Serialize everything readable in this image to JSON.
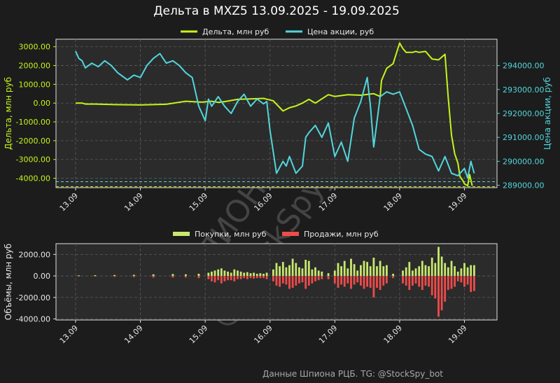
{
  "title": "Дельта в MXZ5 13.09.2025 - 19.09.2025",
  "footer": "Данные Шпиона РЦБ. TG: @StockSpy_bot",
  "watermark": [
    "ШПИОН РЦБ",
    "@StockSpy_bot"
  ],
  "colors": {
    "background": "#1c1c1c",
    "plot_bg": "#2b2b2b",
    "delta": "#c5f41a",
    "price": "#52d6dc",
    "buy": "#c8e86e",
    "sell": "#ef4b4b",
    "text": "#e8e8e8",
    "grid": "#5a5a5a"
  },
  "chart_data": [
    {
      "type": "line",
      "title": "Дельта в MXZ5 13.09.2025 - 19.09.2025",
      "x_ticks": [
        "13.09",
        "14.09",
        "15.09",
        "16.09",
        "17.09",
        "18.09",
        "19.09"
      ],
      "xlim": [
        "13.09",
        "19.09"
      ],
      "legend": [
        "Дельта, млн руб",
        "Цена акции, руб"
      ],
      "legend_position": "top-center",
      "grid": true,
      "left_axis": {
        "label": "Дельта, млн руб",
        "ticks": [
          "3000.00",
          "2000.00",
          "1000.00",
          "0.00",
          "-1000.00",
          "-2000.00",
          "-3000.00",
          "-4000.00"
        ],
        "ylim": [
          -4500,
          3400
        ]
      },
      "right_axis": {
        "label": "Цена акции, руб",
        "ticks": [
          "294000.00",
          "293000.00",
          "292000.00",
          "291000.00",
          "290000.00",
          "289000.00"
        ],
        "ylim": [
          288900,
          295100
        ]
      },
      "hlines": [
        {
          "axis": "left",
          "value": -4450,
          "color": "#c5f41a"
        },
        {
          "axis": "right",
          "value": 289150,
          "color": "#52d6dc"
        }
      ],
      "series": [
        {
          "name": "Дельта, млн руб",
          "axis": "left",
          "x": [
            0,
            0.1,
            0.15,
            0.3,
            0.6,
            1.0,
            1.4,
            1.7,
            1.95,
            2.1,
            2.2,
            2.3,
            2.5,
            2.7,
            2.9,
            3.05,
            3.2,
            3.3,
            3.4,
            3.5,
            3.6,
            3.7,
            3.9,
            4.0,
            4.2,
            4.4,
            4.6,
            4.7,
            4.72,
            4.8,
            4.9,
            5.0,
            5.05,
            5.1,
            5.2,
            5.25,
            5.3,
            5.4,
            5.5,
            5.6,
            5.7,
            5.75,
            5.8,
            5.85,
            5.9,
            5.93,
            5.98,
            6.0,
            6.05,
            6.08,
            6.12
          ],
          "y": [
            0,
            0,
            -50,
            -50,
            -80,
            -100,
            -60,
            100,
            50,
            100,
            40,
            80,
            200,
            220,
            250,
            120,
            -420,
            -250,
            -150,
            0,
            200,
            0,
            450,
            350,
            450,
            420,
            500,
            350,
            1200,
            1850,
            2100,
            3200,
            2900,
            2700,
            2700,
            2750,
            2700,
            2750,
            2350,
            2300,
            2600,
            300,
            -1700,
            -2700,
            -3200,
            -3900,
            -4150,
            -4300,
            -4400,
            -3800,
            -4400
          ]
        },
        {
          "name": "Цена акции, руб",
          "axis": "right",
          "x": [
            0,
            0.05,
            0.1,
            0.15,
            0.25,
            0.35,
            0.45,
            0.55,
            0.65,
            0.7,
            0.8,
            0.9,
            1.0,
            1.1,
            1.2,
            1.3,
            1.35,
            1.4,
            1.5,
            1.6,
            1.7,
            1.8,
            1.9,
            2.0,
            2.05,
            2.1,
            2.2,
            2.3,
            2.4,
            2.5,
            2.6,
            2.7,
            2.8,
            2.9,
            2.95,
            3.0,
            3.1,
            3.2,
            3.25,
            3.3,
            3.4,
            3.5,
            3.55,
            3.6,
            3.7,
            3.8,
            3.9,
            4.0,
            4.1,
            4.2,
            4.3,
            4.4,
            4.5,
            4.55,
            4.6,
            4.7,
            4.8,
            4.9,
            5.0,
            5.1,
            5.2,
            5.3,
            5.4,
            5.5,
            5.6,
            5.7,
            5.8,
            5.9,
            6.0,
            6.05,
            6.1,
            6.15
          ],
          "y": [
            294600,
            294300,
            294200,
            293900,
            294100,
            293950,
            294200,
            294000,
            293700,
            293600,
            293400,
            293600,
            293500,
            294000,
            294300,
            294500,
            294300,
            294100,
            294200,
            294000,
            293700,
            293500,
            292300,
            291700,
            292600,
            292300,
            292700,
            292300,
            292000,
            292500,
            292800,
            292300,
            292600,
            292400,
            292500,
            291300,
            289500,
            290000,
            289800,
            290200,
            289500,
            289800,
            291000,
            291200,
            291500,
            291000,
            291600,
            290200,
            290800,
            290000,
            291800,
            292500,
            293500,
            292300,
            290600,
            292700,
            292900,
            292800,
            292900,
            292200,
            291500,
            290500,
            290300,
            290200,
            289600,
            290200,
            289500,
            289400,
            289700,
            289300,
            290000,
            289500
          ]
        }
      ]
    },
    {
      "type": "bar",
      "x_ticks": [
        "13.09",
        "14.09",
        "15.09",
        "16.09",
        "17.09",
        "18.09",
        "19.09"
      ],
      "xlim": [
        "13.09",
        "19.09"
      ],
      "legend": [
        "Покупки, млн руб",
        "Продажи, млн руб"
      ],
      "legend_position": "top-center",
      "grid": true,
      "ylabel": "Объёмы, млн руб",
      "y_ticks": [
        "2000.00",
        "0.00",
        "-2000.00",
        "-4000.00"
      ],
      "ylim": [
        -4100,
        3000
      ],
      "series": [
        {
          "name": "Покупки, млн руб",
          "x": [
            0.05,
            0.3,
            0.6,
            0.9,
            1.2,
            1.5,
            1.7,
            1.9,
            2.05,
            2.1,
            2.15,
            2.2,
            2.25,
            2.3,
            2.35,
            2.4,
            2.45,
            2.5,
            2.55,
            2.6,
            2.65,
            2.7,
            2.75,
            2.8,
            2.85,
            2.9,
            2.95,
            3.05,
            3.1,
            3.15,
            3.2,
            3.25,
            3.3,
            3.35,
            3.4,
            3.45,
            3.5,
            3.55,
            3.6,
            3.65,
            3.7,
            3.75,
            3.8,
            3.9,
            4.0,
            4.05,
            4.1,
            4.15,
            4.2,
            4.25,
            4.3,
            4.35,
            4.4,
            4.45,
            4.5,
            4.55,
            4.6,
            4.65,
            4.7,
            4.75,
            4.8,
            4.9,
            5.05,
            5.1,
            5.15,
            5.2,
            5.25,
            5.3,
            5.35,
            5.4,
            5.45,
            5.5,
            5.55,
            5.6,
            5.65,
            5.7,
            5.75,
            5.8,
            5.85,
            5.9,
            5.95,
            6.0,
            6.05,
            6.1,
            6.15
          ],
          "values": [
            50,
            60,
            80,
            100,
            150,
            180,
            150,
            200,
            300,
            400,
            500,
            600,
            700,
            500,
            400,
            300,
            600,
            500,
            400,
            300,
            350,
            250,
            300,
            200,
            250,
            200,
            300,
            600,
            1200,
            900,
            1300,
            800,
            1000,
            1600,
            1200,
            800,
            700,
            1500,
            1400,
            600,
            800,
            500,
            400,
            250,
            500,
            1200,
            900,
            1400,
            700,
            1600,
            1100,
            500,
            1000,
            1400,
            1300,
            900,
            1700,
            900,
            1400,
            900,
            1000,
            200,
            500,
            800,
            1300,
            500,
            700,
            900,
            1400,
            1000,
            900,
            1700,
            1200,
            2700,
            1800,
            1200,
            800,
            1400,
            900,
            400,
            700,
            1200,
            800,
            1000,
            1000
          ]
        },
        {
          "name": "Продажи, млн руб",
          "x": [
            0.05,
            0.3,
            0.6,
            0.9,
            1.2,
            1.5,
            1.7,
            1.9,
            2.05,
            2.1,
            2.15,
            2.2,
            2.25,
            2.3,
            2.35,
            2.4,
            2.45,
            2.5,
            2.55,
            2.6,
            2.65,
            2.7,
            2.75,
            2.8,
            2.85,
            2.9,
            2.95,
            3.05,
            3.1,
            3.15,
            3.2,
            3.25,
            3.3,
            3.35,
            3.4,
            3.45,
            3.5,
            3.55,
            3.6,
            3.65,
            3.7,
            3.75,
            3.8,
            3.9,
            4.0,
            4.05,
            4.1,
            4.15,
            4.2,
            4.25,
            4.3,
            4.35,
            4.4,
            4.45,
            4.5,
            4.55,
            4.6,
            4.65,
            4.7,
            4.75,
            4.8,
            4.9,
            5.05,
            5.1,
            5.15,
            5.2,
            5.25,
            5.3,
            5.35,
            5.4,
            5.45,
            5.5,
            5.55,
            5.6,
            5.65,
            5.7,
            5.75,
            5.8,
            5.85,
            5.9,
            5.95,
            6.0,
            6.05,
            6.1,
            6.15
          ],
          "values": [
            -50,
            -60,
            -80,
            -100,
            -150,
            -150,
            -150,
            -200,
            -300,
            -500,
            -600,
            -400,
            -700,
            -500,
            -400,
            -400,
            -500,
            -300,
            -300,
            -200,
            -300,
            -200,
            -250,
            -200,
            -200,
            -200,
            -300,
            -500,
            -900,
            -1000,
            -700,
            -800,
            -1200,
            -1100,
            -900,
            -700,
            -600,
            -1200,
            -900,
            -700,
            -500,
            -400,
            -300,
            -300,
            -700,
            -1100,
            -800,
            -1000,
            -700,
            -1200,
            -800,
            -600,
            -900,
            -1200,
            -1000,
            -1100,
            -2000,
            -1100,
            -1300,
            -900,
            -700,
            -200,
            -700,
            -900,
            -1300,
            -900,
            -700,
            -1000,
            -1300,
            -900,
            -1000,
            -1800,
            -2100,
            -3800,
            -3200,
            -2400,
            -1300,
            -1200,
            -1000,
            -500,
            -600,
            -1000,
            -800,
            -1500,
            -1400
          ]
        }
      ]
    }
  ]
}
